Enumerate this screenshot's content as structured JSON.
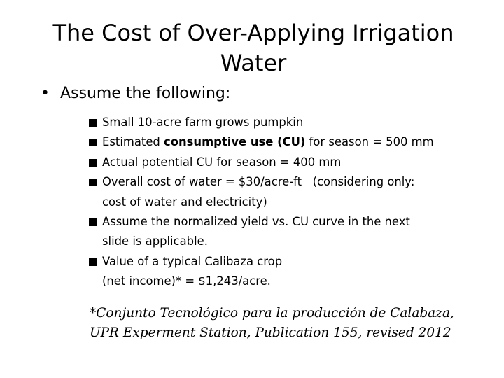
{
  "slide": {
    "title_line1": "The Cost of Over-Applying Irrigation",
    "title_line2": "Water",
    "main_bullet_symbol": "•",
    "main_bullet_text": "Assume the following:",
    "items": [
      {
        "text": "Small 10-acre farm grows pumpkin"
      },
      {
        "prefix": "Estimated ",
        "bold": "consumptive use (CU)",
        "suffix": " for season = 500 mm"
      },
      {
        "text": "Actual potential CU for season = 400 mm"
      },
      {
        "line1": "Overall cost of water = $30/acre-ft   (considering only:",
        "line2": "cost of water and electricity)"
      },
      {
        "line1": "Assume the normalized yield vs. CU curve in the next",
        "line2": "slide is applicable."
      },
      {
        "line1": "Value of a typical Calibaza crop",
        "line2": "(net income)* = $1,243/acre."
      }
    ],
    "footnote_line1": "*Conjunto Tecnológico para la producción de Calabaza,",
    "footnote_line2": "UPR Experment Station, Publication 155, revised 2012",
    "colors": {
      "background": "#ffffff",
      "text": "#000000"
    },
    "sub_bullet_icon": "filled-square"
  }
}
